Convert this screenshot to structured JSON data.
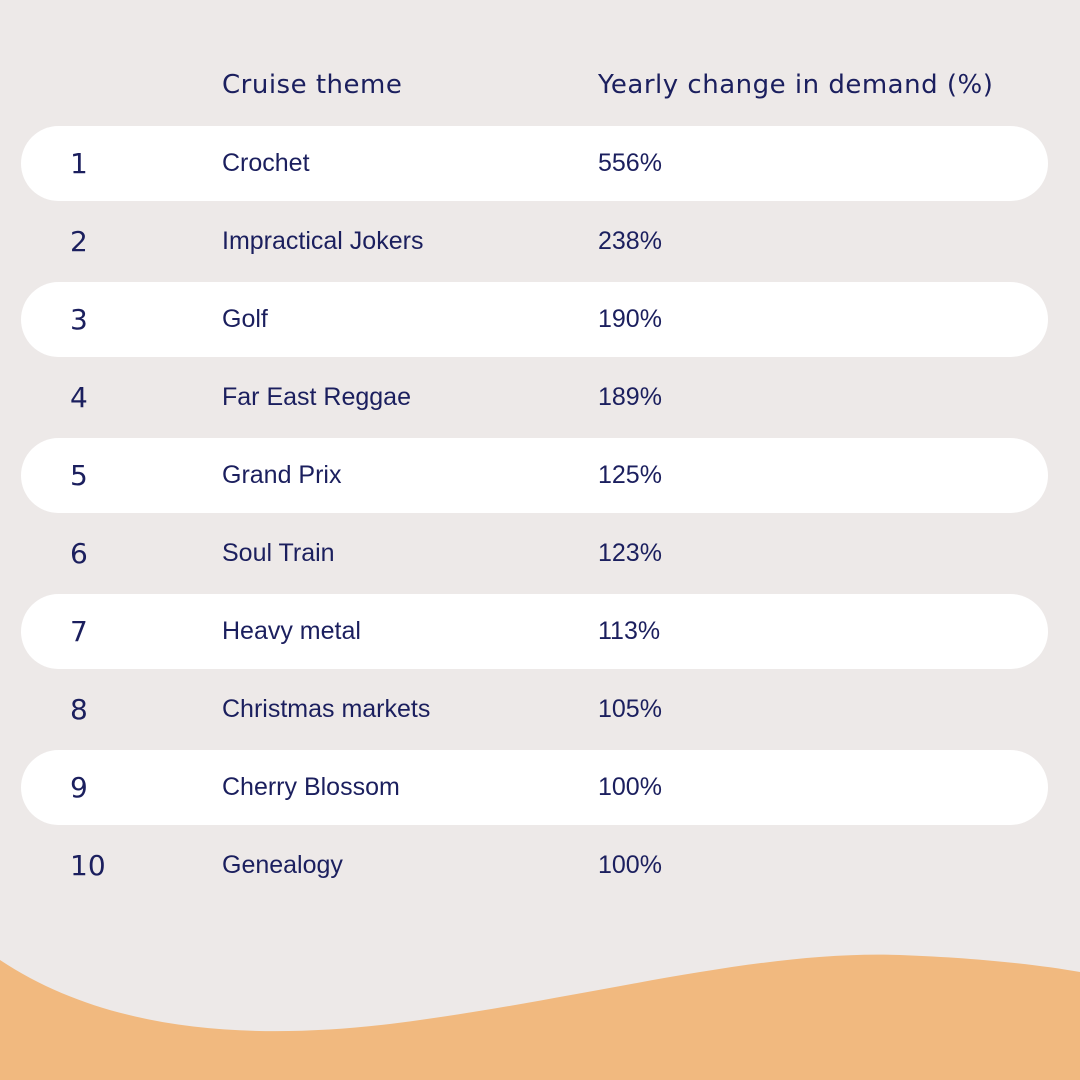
{
  "header": {
    "theme_label": "Cruise theme",
    "change_label": "Yearly change in demand (%)"
  },
  "colors": {
    "background": "#ede9e8",
    "stripe": "#ffffff",
    "text": "#1b1f5e",
    "wave": "#f1b97f"
  },
  "chart_data": {
    "type": "table",
    "columns": [
      "",
      "Cruise theme",
      "Yearly change in demand (%)"
    ],
    "rows": [
      {
        "rank": "1",
        "theme": "Crochet",
        "change": "556%"
      },
      {
        "rank": "2",
        "theme": "Impractical Jokers",
        "change": "238%"
      },
      {
        "rank": "3",
        "theme": "Golf",
        "change": "190%"
      },
      {
        "rank": "4",
        "theme": "Far East Reggae",
        "change": "189%"
      },
      {
        "rank": "5",
        "theme": "Grand Prix",
        "change": "125%"
      },
      {
        "rank": "6",
        "theme": "Soul Train",
        "change": "123%"
      },
      {
        "rank": "7",
        "theme": "Heavy metal",
        "change": "113%"
      },
      {
        "rank": "8",
        "theme": "Christmas markets",
        "change": "105%"
      },
      {
        "rank": "9",
        "theme": "Cherry Blossom",
        "change": "100%"
      },
      {
        "rank": "10",
        "theme": "Genealogy",
        "change": "100%"
      }
    ]
  }
}
